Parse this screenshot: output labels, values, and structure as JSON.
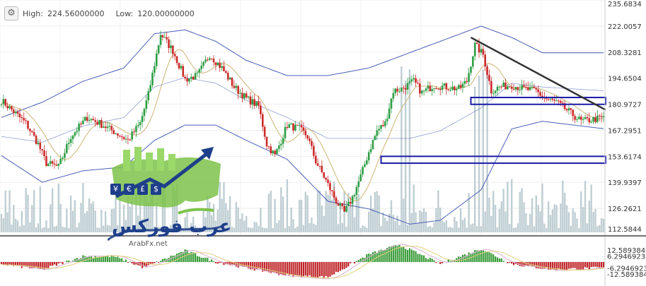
{
  "header": {
    "high_label": "High:",
    "high_value": "224.56000000",
    "low_label": "Low:",
    "low_value": "120.00000000",
    "settings_icon": "gear-icon"
  },
  "watermark": {
    "arabic": "عرب فوركس",
    "site": "ArabFx.net",
    "currency_symbols": [
      "¥",
      "€",
      "£",
      "$"
    ]
  },
  "colors": {
    "up": "#2e9e44",
    "down": "#cc2a2a",
    "bollinger": "#4a5fb8",
    "ma": "#d4c089",
    "volume": "#a9bdc4",
    "trendline": "#333333",
    "zone": "#1a1aa8",
    "macd_up": "#3a9c3a",
    "macd_down": "#c0262a",
    "macd_line": "#d8b2d0",
    "signal_line": "#e0cf7a"
  },
  "chart_data": {
    "type": "candlestick",
    "price_axis_labels": [
      "235.6834",
      "222.0057",
      "208.3281",
      "194.6504",
      "180.9727",
      "167.2951",
      "153.6174",
      "139.9397",
      "126.2621",
      "112.5844"
    ],
    "macd_axis_labels": [
      "12.5893846",
      "6.29469231",
      "-6.29469231",
      "-12.5893846"
    ],
    "ylim": [
      112.5844,
      235.6834
    ],
    "macd_ylim": [
      -12.5893846,
      12.5893846
    ],
    "waypoints": [
      [
        0,
        183
      ],
      [
        6,
        177
      ],
      [
        12,
        171
      ],
      [
        18,
        160
      ],
      [
        22,
        150
      ],
      [
        28,
        148
      ],
      [
        34,
        164
      ],
      [
        42,
        174
      ],
      [
        48,
        171
      ],
      [
        56,
        166
      ],
      [
        62,
        162
      ],
      [
        68,
        171
      ],
      [
        72,
        186
      ],
      [
        78,
        218
      ],
      [
        84,
        209
      ],
      [
        90,
        194
      ],
      [
        96,
        196
      ],
      [
        102,
        207
      ],
      [
        108,
        200
      ],
      [
        114,
        190
      ],
      [
        120,
        184
      ],
      [
        126,
        180
      ],
      [
        130,
        160
      ],
      [
        134,
        154
      ],
      [
        140,
        170
      ],
      [
        146,
        168
      ],
      [
        150,
        164
      ],
      [
        154,
        151
      ],
      [
        158,
        143
      ],
      [
        164,
        130
      ],
      [
        168,
        124
      ],
      [
        172,
        132
      ],
      [
        176,
        143
      ],
      [
        180,
        156
      ],
      [
        184,
        167
      ],
      [
        188,
        171
      ],
      [
        192,
        188
      ],
      [
        196,
        189
      ],
      [
        202,
        193
      ],
      [
        206,
        187
      ],
      [
        212,
        191
      ],
      [
        218,
        190
      ],
      [
        224,
        189
      ],
      [
        228,
        193
      ],
      [
        232,
        212
      ],
      [
        236,
        207
      ],
      [
        240,
        188
      ],
      [
        244,
        190
      ],
      [
        250,
        191
      ],
      [
        256,
        189
      ],
      [
        262,
        188
      ],
      [
        266,
        184
      ],
      [
        272,
        182
      ],
      [
        278,
        177
      ],
      [
        284,
        172
      ],
      [
        290,
        173
      ],
      [
        296,
        174
      ]
    ],
    "bollinger_anchors_upper": [
      [
        0,
        174
      ],
      [
        20,
        182
      ],
      [
        40,
        193
      ],
      [
        60,
        200
      ],
      [
        75,
        218
      ],
      [
        90,
        220
      ],
      [
        105,
        214
      ],
      [
        120,
        204
      ],
      [
        140,
        196
      ],
      [
        160,
        196
      ],
      [
        180,
        200
      ],
      [
        200,
        208
      ],
      [
        215,
        214
      ],
      [
        235,
        222
      ],
      [
        250,
        216
      ],
      [
        265,
        208
      ],
      [
        296,
        208
      ]
    ],
    "bollinger_anchors_lower": [
      [
        0,
        154
      ],
      [
        20,
        140
      ],
      [
        40,
        146
      ],
      [
        60,
        148
      ],
      [
        75,
        162
      ],
      [
        90,
        170
      ],
      [
        105,
        170
      ],
      [
        120,
        162
      ],
      [
        140,
        152
      ],
      [
        160,
        130
      ],
      [
        180,
        126
      ],
      [
        200,
        118
      ],
      [
        215,
        120
      ],
      [
        235,
        136
      ],
      [
        250,
        168
      ],
      [
        265,
        172
      ],
      [
        296,
        168
      ]
    ],
    "macd_anchors": [
      [
        0,
        -1
      ],
      [
        20,
        -4
      ],
      [
        40,
        3
      ],
      [
        55,
        3
      ],
      [
        70,
        -3
      ],
      [
        90,
        6
      ],
      [
        105,
        0
      ],
      [
        120,
        -3
      ],
      [
        140,
        -7
      ],
      [
        160,
        -8
      ],
      [
        180,
        4
      ],
      [
        195,
        9
      ],
      [
        215,
        -1
      ],
      [
        235,
        7
      ],
      [
        250,
        -1
      ],
      [
        270,
        -4
      ],
      [
        296,
        -3
      ]
    ],
    "zones": [
      {
        "y_top": 184.5,
        "y_bottom": 180.9,
        "x_start": 230,
        "x_end": 296
      },
      {
        "y_top": 153.6,
        "y_bottom": 150.0,
        "x_start": 186,
        "x_end": 296
      }
    ],
    "trendline": {
      "from": [
        230,
        216
      ],
      "to": [
        296,
        178
      ]
    }
  }
}
